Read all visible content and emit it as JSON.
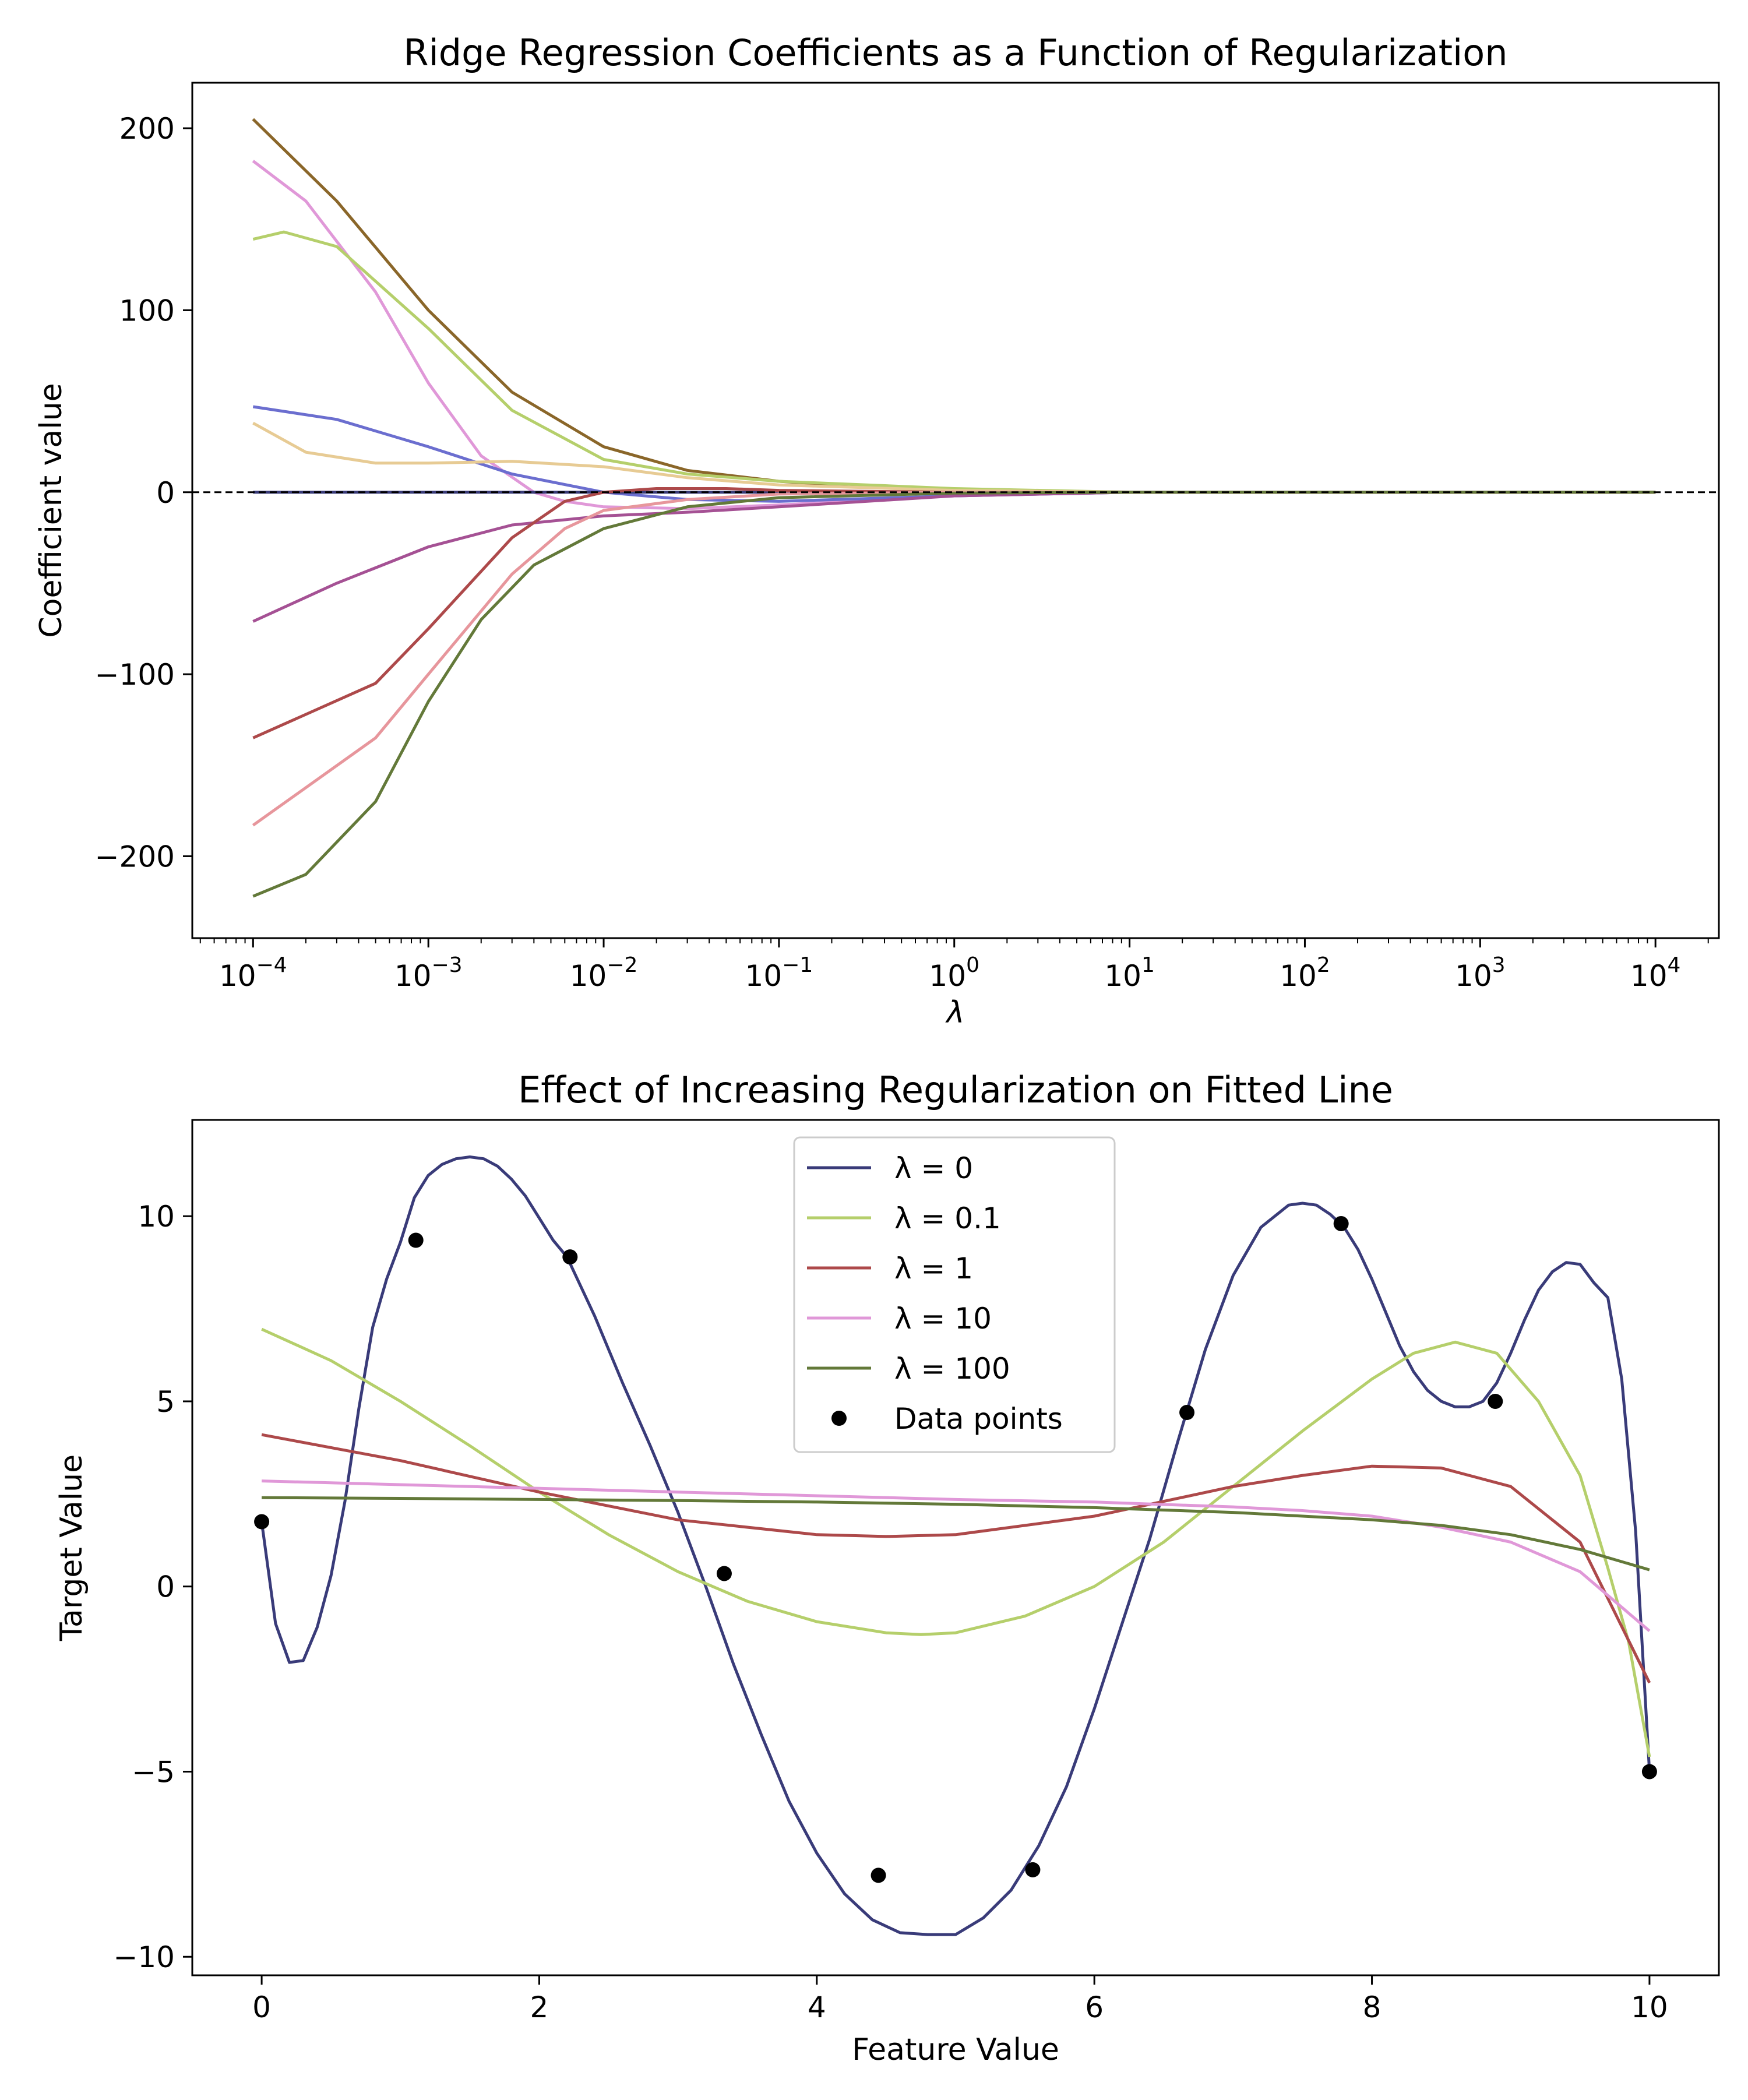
{
  "chart_data": [
    {
      "type": "line",
      "title": "Ridge Regression Coefficients as a Function of Regularization",
      "xlabel": "λ",
      "ylabel": "Coefficient value",
      "xscale": "log",
      "xlim": [
        4.5e-05,
        23000
      ],
      "ylim": [
        -245,
        225
      ],
      "xticks": [
        {
          "value": 0.0001,
          "base": "10",
          "exp": "−4"
        },
        {
          "value": 0.001,
          "base": "10",
          "exp": "−3"
        },
        {
          "value": 0.01,
          "base": "10",
          "exp": "−2"
        },
        {
          "value": 0.1,
          "base": "10",
          "exp": "−1"
        },
        {
          "value": 1,
          "base": "10",
          "exp": "0"
        },
        {
          "value": 10,
          "base": "10",
          "exp": "1"
        },
        {
          "value": 100,
          "base": "10",
          "exp": "2"
        },
        {
          "value": 1000,
          "base": "10",
          "exp": "3"
        },
        {
          "value": 10000,
          "base": "10",
          "exp": "4"
        }
      ],
      "yticks": [
        {
          "value": 200,
          "label": "200"
        },
        {
          "value": 100,
          "label": "100"
        },
        {
          "value": 0,
          "label": "0"
        },
        {
          "value": -100,
          "label": "−100"
        },
        {
          "value": -200,
          "label": "−200"
        }
      ],
      "reference_line": {
        "y": 0,
        "style": "dashed",
        "color": "#000000"
      },
      "series": [
        {
          "color": "#8a6629",
          "x": [
            0.0001,
            0.0003,
            0.001,
            0.003,
            0.01,
            0.03,
            0.1,
            0.3,
            1,
            3,
            10,
            100,
            10000
          ],
          "y": [
            205,
            160,
            100,
            55,
            25,
            12,
            6,
            3,
            1.5,
            0.5,
            0.1,
            0,
            0
          ]
        },
        {
          "color": "#e098d8",
          "x": [
            0.0001,
            0.0002,
            0.0005,
            0.001,
            0.002,
            0.004,
            0.006,
            0.01,
            0.03,
            0.1,
            1,
            10,
            10000
          ],
          "y": [
            182,
            160,
            110,
            60,
            20,
            0,
            -5,
            -8,
            -9,
            -7,
            -2,
            0,
            0
          ]
        },
        {
          "color": "#b5cf6b",
          "x": [
            0.0001,
            0.00015,
            0.0003,
            0.001,
            0.003,
            0.01,
            0.03,
            0.1,
            1,
            10,
            10000
          ],
          "y": [
            139,
            143,
            135,
            90,
            45,
            18,
            10,
            6,
            2,
            0,
            0
          ]
        },
        {
          "color": "#6b6ecf",
          "x": [
            0.0001,
            0.0003,
            0.001,
            0.003,
            0.01,
            0.03,
            0.1,
            1,
            10,
            10000
          ],
          "y": [
            47,
            40,
            25,
            10,
            0,
            -4,
            -5,
            -2,
            0,
            0
          ]
        },
        {
          "color": "#e7cb94",
          "x": [
            0.0001,
            0.0002,
            0.0005,
            0.001,
            0.003,
            0.01,
            0.03,
            0.1,
            1,
            10,
            10000
          ],
          "y": [
            38,
            22,
            16,
            16,
            17,
            14,
            8,
            4,
            1,
            0,
            0
          ]
        },
        {
          "color": "#393b79",
          "x": [
            0.0001,
            10000
          ],
          "y": [
            0,
            0
          ]
        },
        {
          "color": "#a55194",
          "x": [
            0.0001,
            0.0003,
            0.001,
            0.003,
            0.01,
            0.03,
            0.1,
            1,
            10,
            10000
          ],
          "y": [
            -71,
            -50,
            -30,
            -18,
            -13,
            -11,
            -8,
            -2,
            0,
            0
          ]
        },
        {
          "color": "#ad494a",
          "x": [
            0.0001,
            0.0005,
            0.001,
            0.003,
            0.006,
            0.01,
            0.02,
            0.05,
            0.1,
            1,
            10000
          ],
          "y": [
            -135,
            -105,
            -75,
            -25,
            -5,
            0,
            2,
            2,
            1,
            0,
            0
          ]
        },
        {
          "color": "#e7969c",
          "x": [
            0.0001,
            0.0005,
            0.001,
            0.003,
            0.006,
            0.01,
            0.03,
            0.1,
            1,
            10000
          ],
          "y": [
            -183,
            -135,
            -100,
            -45,
            -20,
            -10,
            -4,
            -1,
            0,
            0
          ]
        },
        {
          "color": "#637939",
          "x": [
            0.0001,
            0.0002,
            0.0005,
            0.001,
            0.002,
            0.004,
            0.01,
            0.03,
            0.1,
            1,
            10,
            10000
          ],
          "y": [
            -222,
            -210,
            -170,
            -115,
            -70,
            -40,
            -20,
            -8,
            -3,
            -0.5,
            0,
            0
          ]
        }
      ]
    },
    {
      "type": "line",
      "title": "Effect of Increasing Regularization on Fitted Line",
      "xlabel": "Feature Value",
      "ylabel": "Target Value",
      "xlim": [
        -0.5,
        10.5
      ],
      "ylim": [
        -10.5,
        12.6
      ],
      "xticks": [
        0,
        2,
        4,
        6,
        8,
        10
      ],
      "yticks": [
        {
          "value": 10,
          "label": "10"
        },
        {
          "value": 5,
          "label": "5"
        },
        {
          "value": 0,
          "label": "0"
        },
        {
          "value": -5,
          "label": "−5"
        },
        {
          "value": -10,
          "label": "−10"
        }
      ],
      "series": [
        {
          "name": "λ = 0",
          "color": "#393b79",
          "x": [
            0,
            0.1,
            0.2,
            0.3,
            0.4,
            0.5,
            0.6,
            0.7,
            0.8,
            0.9,
            1.0,
            1.1,
            1.2,
            1.3,
            1.4,
            1.5,
            1.6,
            1.7,
            1.8,
            1.9,
            2.0,
            2.1,
            2.2,
            2.4,
            2.6,
            2.8,
            3.0,
            3.2,
            3.4,
            3.6,
            3.8,
            4.0,
            4.2,
            4.4,
            4.6,
            4.8,
            5.0,
            5.2,
            5.4,
            5.6,
            5.8,
            6.0,
            6.2,
            6.4,
            6.6,
            6.8,
            7.0,
            7.2,
            7.4,
            7.5,
            7.6,
            7.7,
            7.8,
            7.9,
            8.0,
            8.1,
            8.2,
            8.3,
            8.4,
            8.5,
            8.6,
            8.7,
            8.8,
            8.9,
            9.0,
            9.1,
            9.2,
            9.3,
            9.4,
            9.5,
            9.6,
            9.7,
            9.8,
            9.9,
            10.0
          ],
          "y": [
            1.75,
            -1.0,
            -2.05,
            -2.0,
            -1.1,
            0.3,
            2.3,
            4.8,
            7.0,
            8.3,
            9.3,
            10.5,
            11.1,
            11.4,
            11.55,
            11.6,
            11.55,
            11.35,
            11.0,
            10.55,
            9.95,
            9.35,
            8.9,
            7.3,
            5.5,
            3.8,
            2.0,
            0.0,
            -2.1,
            -4.0,
            -5.8,
            -7.2,
            -8.3,
            -9.0,
            -9.35,
            -9.4,
            -9.4,
            -8.95,
            -8.2,
            -7.0,
            -5.4,
            -3.3,
            -1.0,
            1.3,
            3.9,
            6.4,
            8.4,
            9.7,
            10.3,
            10.35,
            10.3,
            10.05,
            9.7,
            9.1,
            8.3,
            7.4,
            6.5,
            5.8,
            5.3,
            5.0,
            4.85,
            4.85,
            5.0,
            5.5,
            6.3,
            7.2,
            8.0,
            8.5,
            8.75,
            8.7,
            8.2,
            7.8,
            5.6,
            1.5,
            -5.0
          ]
        },
        {
          "name": "λ = 0.1",
          "color": "#b5cf6b",
          "x": [
            0,
            0.5,
            1,
            1.5,
            2,
            2.5,
            3,
            3.5,
            4,
            4.5,
            4.75,
            5,
            5.5,
            6,
            6.5,
            7,
            7.5,
            8,
            8.3,
            8.6,
            8.9,
            9.2,
            9.5,
            9.7,
            9.85,
            10
          ],
          "y": [
            6.95,
            6.1,
            5.0,
            3.8,
            2.55,
            1.4,
            0.4,
            -0.4,
            -0.95,
            -1.25,
            -1.3,
            -1.25,
            -0.8,
            0.0,
            1.2,
            2.7,
            4.2,
            5.6,
            6.3,
            6.6,
            6.3,
            5.0,
            3.0,
            0.5,
            -1.5,
            -4.6
          ]
        },
        {
          "name": "λ = 1",
          "color": "#ad494a",
          "x": [
            0,
            1,
            2,
            3,
            4,
            4.5,
            5,
            6,
            7,
            7.5,
            8,
            8.5,
            9,
            9.5,
            10
          ],
          "y": [
            4.1,
            3.4,
            2.55,
            1.8,
            1.4,
            1.35,
            1.4,
            1.9,
            2.7,
            3.0,
            3.25,
            3.2,
            2.7,
            1.2,
            -2.6
          ]
        },
        {
          "name": "λ = 10",
          "color": "#e098d8",
          "x": [
            0,
            1,
            2,
            3,
            4,
            5,
            6,
            7,
            7.5,
            8,
            8.5,
            9,
            9.5,
            10
          ],
          "y": [
            2.85,
            2.75,
            2.65,
            2.55,
            2.45,
            2.35,
            2.28,
            2.15,
            2.05,
            1.9,
            1.6,
            1.2,
            0.4,
            -1.2
          ]
        },
        {
          "name": "λ = 100",
          "color": "#637939",
          "x": [
            0,
            1,
            2,
            3,
            4,
            5,
            6,
            7,
            8,
            8.5,
            9,
            9.5,
            10
          ],
          "y": [
            2.4,
            2.38,
            2.35,
            2.32,
            2.28,
            2.22,
            2.13,
            2.0,
            1.8,
            1.65,
            1.4,
            1.0,
            0.45
          ]
        }
      ],
      "points": {
        "name": "Data points",
        "color": "#000000",
        "x": [
          0,
          1.111,
          2.222,
          3.333,
          4.444,
          5.556,
          6.667,
          7.778,
          8.889,
          10
        ],
        "y": [
          1.75,
          9.35,
          8.9,
          0.35,
          -7.8,
          -7.65,
          4.7,
          9.8,
          5.0,
          -5.0
        ]
      },
      "legend_position": "upper center"
    }
  ]
}
